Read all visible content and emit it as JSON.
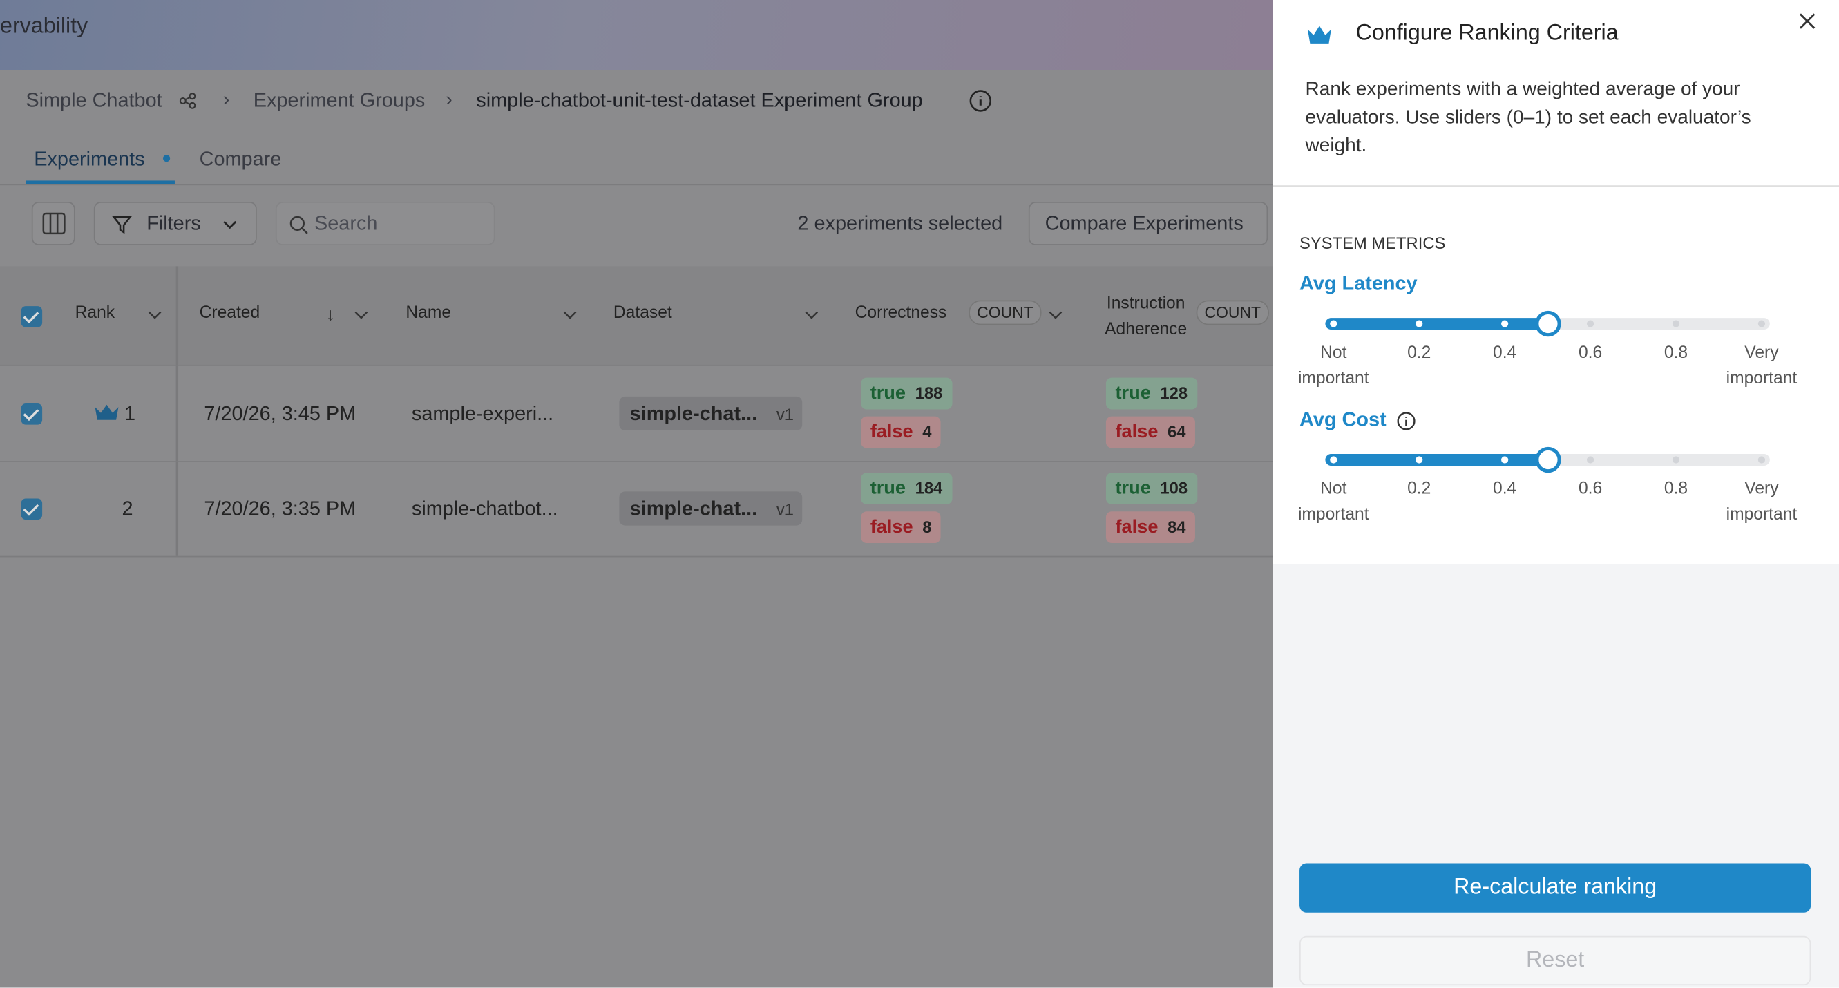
{
  "app_title": "ervability",
  "breadcrumb": [
    "Simple Chatbot",
    "Experiment Groups",
    "simple-chatbot-unit-test-dataset Experiment Group"
  ],
  "tabs": [
    "Experiments",
    "Compare"
  ],
  "toolbar": {
    "filters": "Filters",
    "search_placeholder": "Search",
    "selection": "2 experiments selected",
    "compare_button": "Compare Experiments"
  },
  "table": {
    "columns": [
      "Rank",
      "Created",
      "Name",
      "Dataset",
      "Correctness",
      "Instruction Adherence"
    ],
    "aggregation": "COUNT",
    "true_label": "true",
    "false_label": "false",
    "rows": [
      {
        "rank": "1",
        "created": "7/20/26, 3:45 PM",
        "name": "sample-experi...",
        "dataset": "simple-chat...",
        "version": "v1",
        "correctness": {
          "true": 188,
          "false": 4
        },
        "instruction_adherence": {
          "true": 128,
          "false": 64
        }
      },
      {
        "rank": "2",
        "created": "7/20/26, 3:35 PM",
        "name": "simple-chatbot...",
        "dataset": "simple-chat...",
        "version": "v1",
        "correctness": {
          "true": 184,
          "false": 8
        },
        "instruction_adherence": {
          "true": 108,
          "false": 84
        }
      }
    ]
  },
  "panel": {
    "title": "Configure Ranking Criteria",
    "description": "Rank experiments with a weighted average of your evaluators. Use sliders (0–1) to set each evaluator’s weight.",
    "section": "SYSTEM METRICS",
    "scale_labels": [
      "Not important",
      "0.2",
      "0.4",
      "0.6",
      "0.8",
      "Very important"
    ],
    "sliders": [
      {
        "name": "Avg Latency",
        "weight": 0.5
      },
      {
        "name": "Avg Cost",
        "weight": 0.5
      }
    ],
    "recalculate_button": "Re-calculate ranking",
    "reset_button": "Reset"
  }
}
